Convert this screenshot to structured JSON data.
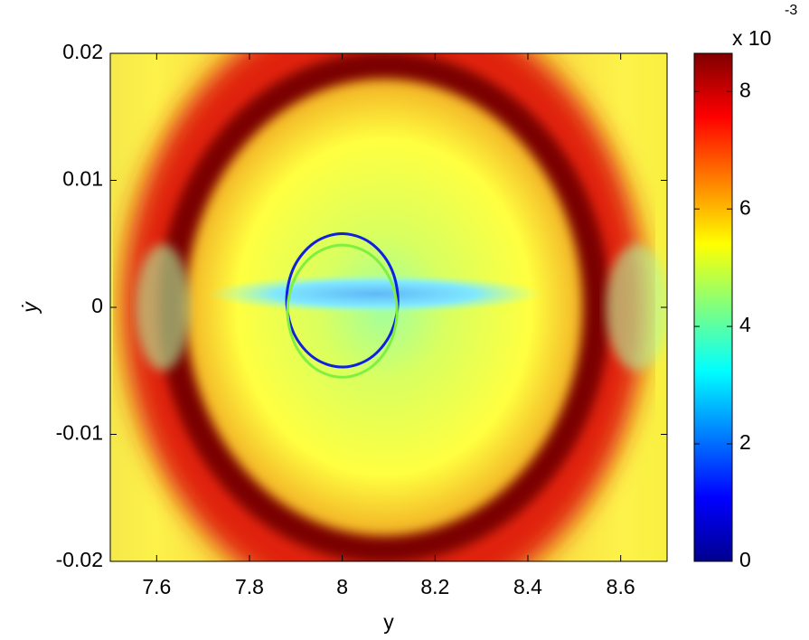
{
  "chart_data": {
    "type": "heatmap",
    "xlabel": "y",
    "ylabel": "ẏ",
    "xlim": [
      7.5,
      8.7
    ],
    "xticks": [
      7.6,
      7.8,
      8,
      8.2,
      8.4,
      8.6
    ],
    "ylim": [
      -0.02,
      0.02
    ],
    "yticks": [
      -0.02,
      -0.01,
      0,
      0.01,
      0.02
    ],
    "colorbar": {
      "clim": [
        0,
        8.65
      ],
      "ticks": [
        0,
        2,
        4,
        6,
        8
      ],
      "multiplier_label": "x 10",
      "exponent": -3
    },
    "series": [
      {
        "color": "#1020e0",
        "x": [
          8.12,
          8.104,
          8.06,
          8.0,
          7.94,
          7.896,
          7.88,
          7.896,
          7.94,
          8.0,
          8.06,
          8.104,
          8.12
        ],
        "y": [
          0.00055,
          0.00318,
          0.0051,
          0.0058,
          0.0051,
          0.00318,
          0.00055,
          -0.00208,
          -0.004,
          -0.0047,
          -0.004,
          -0.00208,
          0.00055
        ]
      },
      {
        "color": "#80f040",
        "x": [
          8.118,
          8.102,
          8.059,
          8.0,
          7.941,
          7.898,
          7.882,
          7.898,
          7.941,
          8.0,
          8.059,
          8.102,
          8.118
        ],
        "y": [
          -0.0003,
          0.0023,
          0.0042,
          0.0049,
          0.0042,
          0.0023,
          -0.0003,
          -0.0029,
          -0.0048,
          -0.0055,
          -0.0048,
          -0.0029,
          -0.0003
        ]
      }
    ]
  }
}
